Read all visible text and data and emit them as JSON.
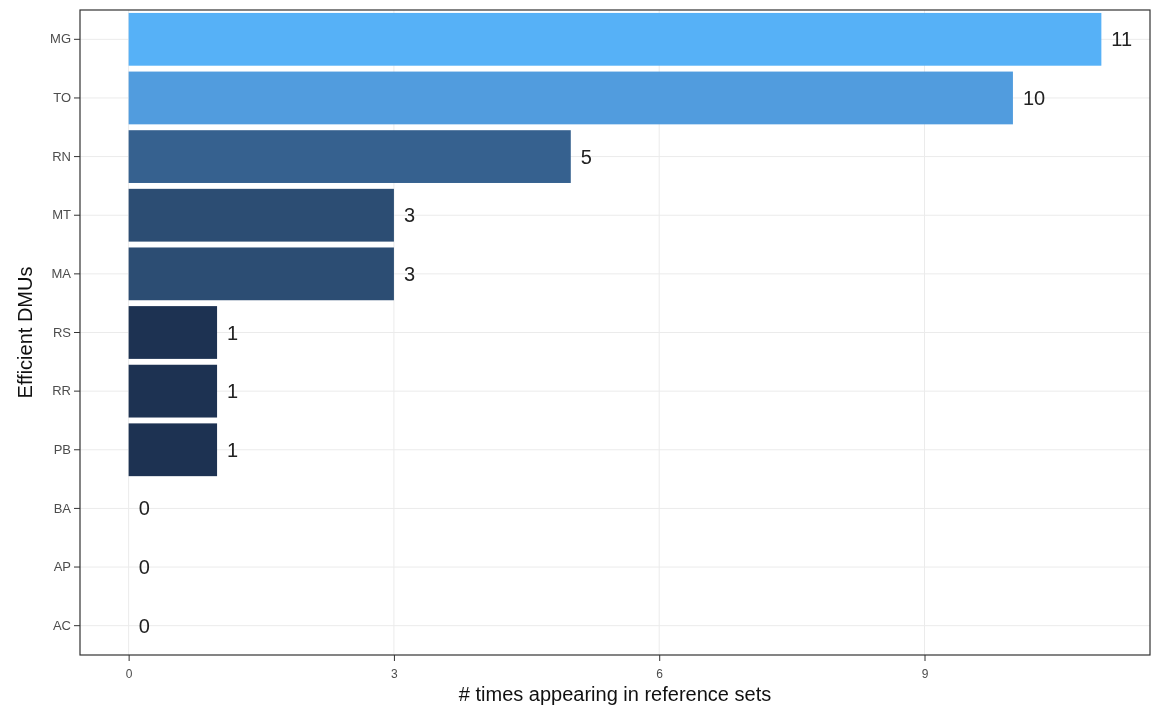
{
  "chart_data": {
    "type": "bar",
    "orientation": "horizontal",
    "xlabel": "# times appearing in reference sets",
    "ylabel": "Efficient DMUs",
    "categories": [
      "MG",
      "TO",
      "RN",
      "MT",
      "MA",
      "RS",
      "RR",
      "PB",
      "BA",
      "AP",
      "AC"
    ],
    "values": [
      11,
      10,
      5,
      3,
      3,
      1,
      1,
      1,
      0,
      0,
      0
    ],
    "colors": [
      "#56b1f7",
      "#519cde",
      "#36618f",
      "#2c4d73",
      "#2c4d73",
      "#1d3252",
      "#1d3252",
      "#1d3252",
      "#132b43",
      "#132b43",
      "#132b43"
    ],
    "xlim": [
      -0.55,
      11.55
    ],
    "xticks": [
      0,
      3,
      6,
      9
    ],
    "grid": true,
    "data_labels": true
  }
}
